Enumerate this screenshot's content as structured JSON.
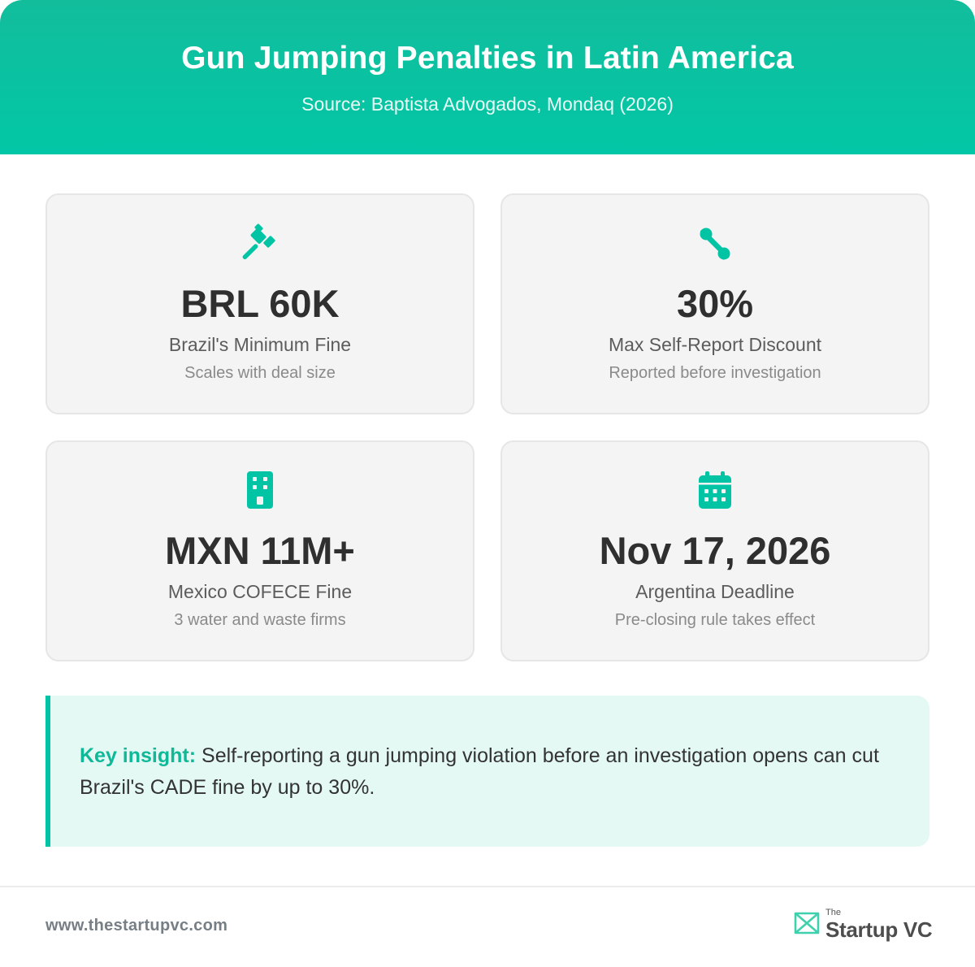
{
  "header": {
    "title": "Gun Jumping Penalties in Latin America",
    "source": "Source: Baptista Advogados, Mondaq (2026)"
  },
  "colors": {
    "accent": "#00c4a4",
    "header_bg": "#0fc09e",
    "card_bg": "#f4f4f4",
    "insight_bg": "#e4f9f4"
  },
  "cards": [
    {
      "icon": "gavel-icon",
      "value": "BRL 60K",
      "label": "Brazil's Minimum Fine",
      "sub": "Scales with deal size"
    },
    {
      "icon": "percent-icon",
      "value": "30%",
      "label": "Max Self-Report Discount",
      "sub": "Reported before investigation"
    },
    {
      "icon": "building-icon",
      "value": "MXN 11M+",
      "label": "Mexico COFECE Fine",
      "sub": "3 water and waste firms"
    },
    {
      "icon": "calendar-icon",
      "value": "Nov 17, 2026",
      "label": "Argentina Deadline",
      "sub": "Pre-closing rule takes effect"
    }
  ],
  "insight": {
    "key": "Key insight:",
    "text": " Self-reporting a gun jumping violation before an investigation opens can cut Brazil's CADE fine by up to 30%."
  },
  "footer": {
    "url": "www.thestartupvc.com",
    "logo_the": "The",
    "logo_name": "Startup VC"
  }
}
